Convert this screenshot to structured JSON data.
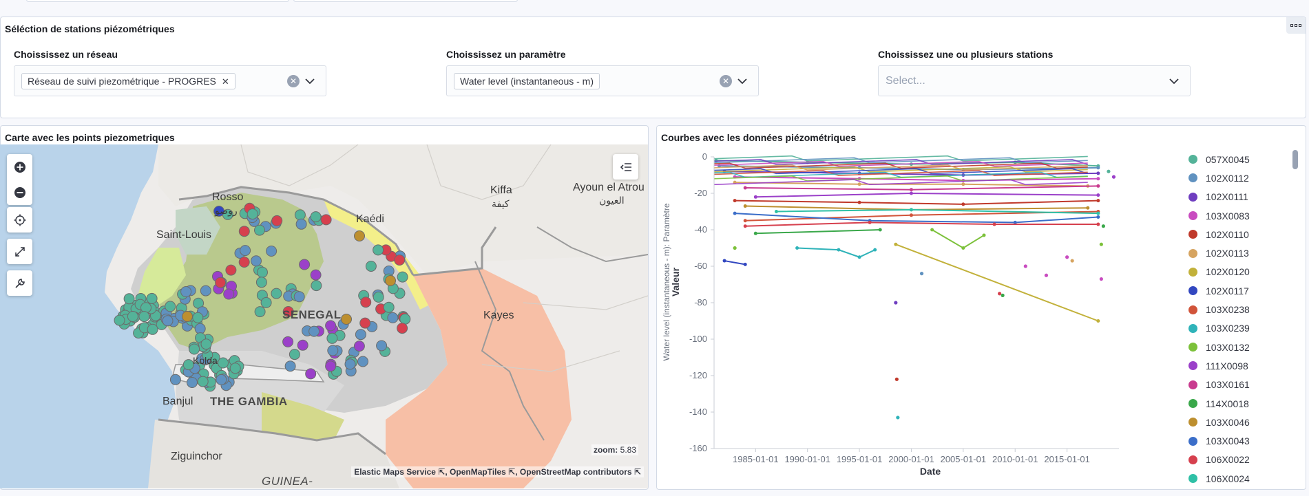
{
  "selection_panel": {
    "title": "Séléction de stations piézométriques",
    "network": {
      "label": "Choississez un réseau",
      "selected": "Réseau de suivi piezométrique - PROGRES"
    },
    "parameter": {
      "label": "Choississez un paramètre",
      "selected": "Water level (instantaneous - m)"
    },
    "stations": {
      "label": "Choississez une ou plusieurs stations",
      "placeholder": "Select..."
    }
  },
  "map_panel": {
    "title": "Carte avec les points piezometriques",
    "zoom_label": "zoom:",
    "zoom_value": "5.83",
    "attribution": [
      "Elastic Maps Service",
      "OpenMapTiles",
      "OpenStreetMap contributors"
    ],
    "places": [
      {
        "name": "Rosso",
        "type": "city"
      },
      {
        "name": "روصو",
        "type": "city-ar"
      },
      {
        "name": "Saint-Louis",
        "type": "city"
      },
      {
        "name": "Kaédi",
        "type": "city"
      },
      {
        "name": "Kiffa",
        "type": "city"
      },
      {
        "name": "كيفة",
        "type": "city-ar"
      },
      {
        "name": "Ayoun el Atrou",
        "type": "city"
      },
      {
        "name": "العيون",
        "type": "city-ar"
      },
      {
        "name": "SENEGAL",
        "type": "country"
      },
      {
        "name": "Kayes",
        "type": "city"
      },
      {
        "name": "Banjul",
        "type": "city"
      },
      {
        "name": "THE GAMBIA",
        "type": "country"
      },
      {
        "name": "Ziguinchor",
        "type": "city"
      },
      {
        "name": "GUINEA-",
        "type": "country"
      },
      {
        "name": "Kolda",
        "type": "city"
      }
    ],
    "icons": {
      "zoom_in": "plus-circle-icon",
      "zoom_out": "minus-circle-icon",
      "locate": "crosshair-icon",
      "fit": "expand-icon",
      "tools": "wrench-icon",
      "legend": "list-collapse-icon"
    }
  },
  "chart_panel": {
    "title": "Courbes avec les données piézométriques",
    "legend": [
      {
        "name": "057X0045",
        "color": "#54b399"
      },
      {
        "name": "102X0112",
        "color": "#6092c0"
      },
      {
        "name": "102X0111",
        "color": "#6f3ec0"
      },
      {
        "name": "103X0083",
        "color": "#c94cc0"
      },
      {
        "name": "102X0110",
        "color": "#c0392b"
      },
      {
        "name": "102X0113",
        "color": "#d6a460"
      },
      {
        "name": "102X0120",
        "color": "#c2b13a"
      },
      {
        "name": "102X0117",
        "color": "#3247c0"
      },
      {
        "name": "103X0238",
        "color": "#d1543a"
      },
      {
        "name": "103X0239",
        "color": "#2fb3b9"
      },
      {
        "name": "103X0132",
        "color": "#7cc13a"
      },
      {
        "name": "111X0098",
        "color": "#9b40c9"
      },
      {
        "name": "103X0161",
        "color": "#c93b8f"
      },
      {
        "name": "114X0018",
        "color": "#3aa84a"
      },
      {
        "name": "103X0046",
        "color": "#bd8f2f"
      },
      {
        "name": "103X0043",
        "color": "#3b6ec9"
      },
      {
        "name": "106X0022",
        "color": "#d6404e"
      },
      {
        "name": "106X0024",
        "color": "#2fc0a6"
      }
    ]
  },
  "chart_data": {
    "type": "line",
    "xlabel": "Date",
    "ylabel": "Valeur",
    "ylabel_secondary": "Water level (instantaneous - m): Paramètre",
    "x_ticks": [
      "1985-01-01",
      "1990-01-01",
      "1995-01-01",
      "2000-01-01",
      "2005-01-01",
      "2010-01-01",
      "2015-01-01"
    ],
    "ylim": [
      -160,
      0
    ],
    "y_ticks": [
      0,
      -20,
      -40,
      -60,
      -80,
      -100,
      -120,
      -140,
      -160
    ],
    "xlim": [
      1981,
      2020
    ],
    "series": [
      {
        "color": "#54b399",
        "x": [
          1981.2,
          1990,
          2000,
          2010,
          2018
        ],
        "y": [
          -2,
          -3,
          -4,
          -3,
          -5
        ]
      },
      {
        "color": "#6092c0",
        "x": [
          1981.5,
          1995,
          2005,
          2018
        ],
        "y": [
          -5,
          -6,
          -7,
          -6
        ]
      },
      {
        "color": "#6f3ec0",
        "x": [
          1982,
          1995,
          2005,
          2018
        ],
        "y": [
          -8,
          -9,
          -10,
          -9
        ]
      },
      {
        "color": "#c94cc0",
        "x": [
          1983,
          1995,
          2005,
          2018
        ],
        "y": [
          -11,
          -12,
          -13,
          -12
        ]
      },
      {
        "color": "#c0392b",
        "x": [
          1983,
          1995,
          2005,
          2018
        ],
        "y": [
          -24,
          -25,
          -26,
          -24
        ]
      },
      {
        "color": "#d6a460",
        "x": [
          1983,
          1995,
          2005,
          2017
        ],
        "y": [
          -14,
          -15,
          -15,
          -16
        ]
      },
      {
        "color": "#c2b13a",
        "x": [
          1998.5,
          2018
        ],
        "y": [
          -48,
          -90
        ]
      },
      {
        "color": "#3247c0",
        "x": [
          1982,
          1984
        ],
        "y": [
          -57,
          -59
        ]
      },
      {
        "color": "#d1543a",
        "x": [
          1984,
          2000,
          2018
        ],
        "y": [
          -35,
          -32,
          -30
        ]
      },
      {
        "color": "#2fb3b9",
        "x": [
          1989,
          1993,
          1995,
          1996.5
        ],
        "y": [
          -50,
          -51,
          -55,
          -51
        ]
      },
      {
        "color": "#7cc13a",
        "x": [
          2002,
          2005,
          2007
        ],
        "y": [
          -40,
          -50,
          -43
        ]
      },
      {
        "color": "#9b40c9",
        "x": [
          1985,
          2000,
          2018
        ],
        "y": [
          -22,
          -20,
          -21
        ]
      },
      {
        "color": "#c93b8f",
        "x": [
          1984,
          2000,
          2018
        ],
        "y": [
          -17,
          -18,
          -16
        ]
      },
      {
        "color": "#3aa84a",
        "x": [
          1985,
          1997
        ],
        "y": [
          -42,
          -40
        ]
      },
      {
        "color": "#bd8f2f",
        "x": [
          1984,
          2000,
          2017
        ],
        "y": [
          -27,
          -29,
          -28
        ]
      },
      {
        "color": "#3b6ec9",
        "x": [
          1983,
          1996,
          2010,
          2018
        ],
        "y": [
          -31,
          -35,
          -36,
          -33
        ]
      },
      {
        "color": "#d6404e",
        "x": [
          1984,
          1996,
          2008,
          2018
        ],
        "y": [
          -38,
          -36,
          -37,
          -37
        ]
      },
      {
        "color": "#2fc0a6",
        "x": [
          1987,
          2000,
          2018
        ],
        "y": [
          -30,
          -29,
          -31
        ]
      }
    ],
    "scatter": [
      {
        "color": "#6f3ec0",
        "x": 1998.5,
        "y": -80
      },
      {
        "color": "#c0392b",
        "x": 1998.6,
        "y": -122
      },
      {
        "color": "#2fb3b9",
        "x": 1998.7,
        "y": -143
      },
      {
        "color": "#d6404e",
        "x": 2008.5,
        "y": -75
      },
      {
        "color": "#3aa84a",
        "x": 2008.8,
        "y": -76
      },
      {
        "color": "#c94cc0",
        "x": 2018.3,
        "y": -67
      },
      {
        "color": "#7cc13a",
        "x": 2018.3,
        "y": -48
      },
      {
        "color": "#3aa84a",
        "x": 2018.5,
        "y": -38
      },
      {
        "color": "#c94cc0",
        "x": 2015,
        "y": -55
      },
      {
        "color": "#d6a460",
        "x": 2015.5,
        "y": -57
      },
      {
        "color": "#c94cc0",
        "x": 2013,
        "y": -65
      },
      {
        "color": "#7cc13a",
        "x": 1983,
        "y": -50
      },
      {
        "color": "#c94cc0",
        "x": 2011,
        "y": -60
      },
      {
        "color": "#6092c0",
        "x": 2001,
        "y": -64
      },
      {
        "color": "#54b399",
        "x": 2019,
        "y": -8
      },
      {
        "color": "#9b40c9",
        "x": 2019.5,
        "y": -11
      }
    ]
  }
}
